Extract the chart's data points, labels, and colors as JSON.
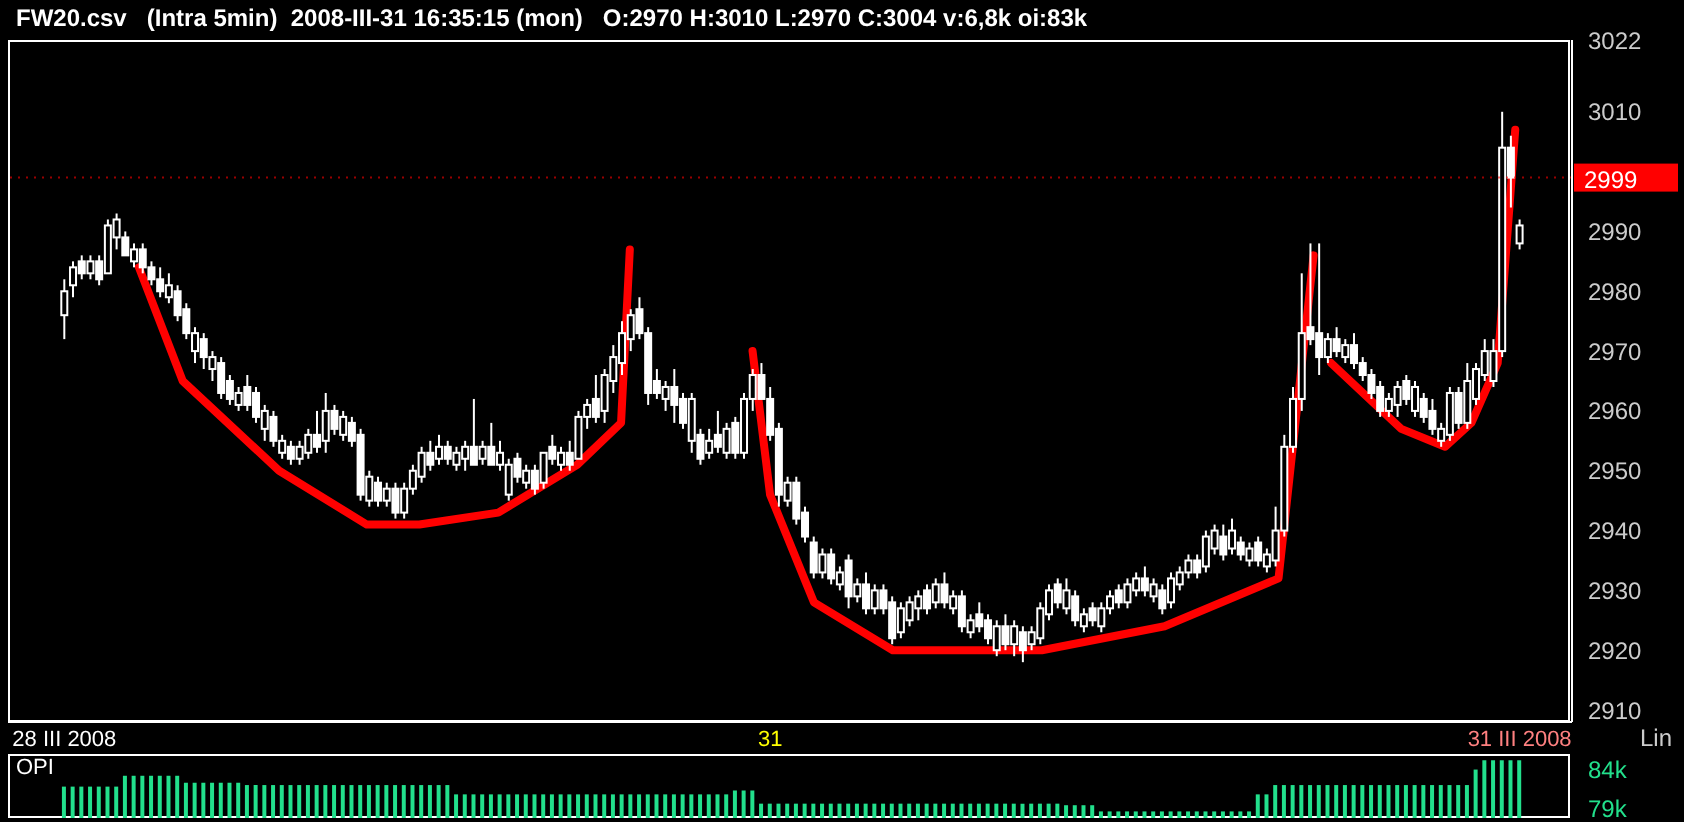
{
  "chart_data": [
    {
      "type": "candlestick",
      "title": "FW20.csv   (Intra 5min)  2008-III-31 16:35:15 (mon)   O:2970 H:3010 L:2970 C:3004 v:6,8k oi:83k",
      "color": "#ffffff",
      "categories": [
        "28 III 2008",
        null,
        null,
        null,
        null,
        null,
        null,
        null,
        null,
        null,
        null,
        null,
        null,
        null,
        null,
        null,
        null,
        null,
        null,
        null,
        null,
        null,
        null,
        null,
        null,
        null,
        null,
        null,
        null,
        null,
        null,
        null,
        null,
        null,
        null,
        null,
        null,
        null,
        null,
        null,
        null,
        null,
        null,
        null,
        null,
        null,
        null,
        null,
        null,
        null,
        null,
        null,
        null,
        null,
        null,
        null,
        null,
        null,
        null,
        null,
        null,
        null,
        null,
        null,
        null,
        null,
        null,
        null,
        null,
        null,
        null,
        null,
        null,
        null,
        null,
        null,
        null,
        null,
        null,
        null,
        null,
        "31",
        null,
        null,
        null,
        null,
        null,
        null,
        null,
        null,
        null,
        null,
        null,
        null,
        null,
        null,
        null,
        null,
        null,
        null,
        null,
        null,
        null,
        null,
        null,
        null,
        null,
        null,
        null,
        null,
        null,
        null,
        null,
        null,
        null,
        null,
        null,
        null,
        null,
        null,
        null,
        null,
        null,
        null,
        null,
        null,
        null,
        null,
        null,
        null,
        null,
        null,
        null,
        null,
        null,
        null,
        null,
        null,
        null,
        null,
        null,
        null,
        null,
        null,
        null,
        null,
        null,
        null,
        null,
        null,
        null,
        null,
        null,
        null,
        null,
        null,
        null,
        null,
        null,
        null,
        null,
        null,
        null,
        null,
        null,
        null,
        null,
        "31 III 2008"
      ],
      "ohlc": [
        [
          2976,
          2982,
          2972,
          2980
        ],
        [
          2981,
          2985,
          2979,
          2984
        ],
        [
          2985,
          2986,
          2982,
          2983
        ],
        [
          2983,
          2986,
          2982,
          2985
        ],
        [
          2985,
          2986,
          2981,
          2982
        ],
        [
          2983,
          2992,
          2983,
          2991
        ],
        [
          2989,
          2993,
          2987,
          2992
        ],
        [
          2989,
          2990,
          2986,
          2986
        ],
        [
          2985,
          2988,
          2984,
          2987
        ],
        [
          2987,
          2988,
          2983,
          2984
        ],
        [
          2984,
          2985,
          2981,
          2982
        ],
        [
          2982,
          2984,
          2979,
          2980
        ],
        [
          2979,
          2983,
          2978,
          2981
        ],
        [
          2980,
          2981,
          2975,
          2976
        ],
        [
          2977,
          2978,
          2972,
          2973
        ],
        [
          2970,
          2974,
          2968,
          2973
        ],
        [
          2972,
          2973,
          2967,
          2969
        ],
        [
          2967,
          2970,
          2965,
          2969
        ],
        [
          2968,
          2969,
          2962,
          2963
        ],
        [
          2965,
          2966,
          2961,
          2962
        ],
        [
          2961,
          2964,
          2960,
          2963
        ],
        [
          2964,
          2966,
          2960,
          2961
        ],
        [
          2963,
          2964,
          2958,
          2959
        ],
        [
          2957,
          2961,
          2955,
          2960
        ],
        [
          2959,
          2960,
          2954,
          2955
        ],
        [
          2953,
          2956,
          2952,
          2955
        ],
        [
          2954,
          2955,
          2951,
          2952
        ],
        [
          2952,
          2955,
          2951,
          2954
        ],
        [
          2953,
          2957,
          2952,
          2956
        ],
        [
          2956,
          2960,
          2953,
          2954
        ],
        [
          2955,
          2963,
          2953,
          2960
        ],
        [
          2960,
          2961,
          2956,
          2957
        ],
        [
          2956,
          2960,
          2955,
          2959
        ],
        [
          2958,
          2959,
          2954,
          2955
        ],
        [
          2956,
          2957,
          2945,
          2946
        ],
        [
          2945,
          2950,
          2944,
          2949
        ],
        [
          2948,
          2949,
          2944,
          2945
        ],
        [
          2945,
          2948,
          2944,
          2947
        ],
        [
          2947,
          2948,
          2942,
          2943
        ],
        [
          2943,
          2948,
          2942,
          2947
        ],
        [
          2947,
          2951,
          2946,
          2950
        ],
        [
          2949,
          2954,
          2948,
          2953
        ],
        [
          2953,
          2955,
          2950,
          2951
        ],
        [
          2952,
          2956,
          2951,
          2954
        ],
        [
          2954,
          2955,
          2951,
          2952
        ],
        [
          2951,
          2954,
          2950,
          2953
        ],
        [
          2952,
          2955,
          2950,
          2954
        ],
        [
          2954,
          2962,
          2951,
          2951
        ],
        [
          2952,
          2955,
          2951,
          2954
        ],
        [
          2954,
          2958,
          2951,
          2951
        ],
        [
          2951,
          2955,
          2950,
          2953
        ],
        [
          2946,
          2952,
          2945,
          2951
        ],
        [
          2952,
          2953,
          2948,
          2949
        ],
        [
          2948,
          2951,
          2947,
          2950
        ],
        [
          2950,
          2951,
          2946,
          2947
        ],
        [
          2948,
          2953,
          2947,
          2953
        ],
        [
          2954,
          2956,
          2951,
          2952
        ],
        [
          2951,
          2954,
          2950,
          2953
        ],
        [
          2953,
          2955,
          2950,
          2951
        ],
        [
          2952,
          2960,
          2952,
          2959
        ],
        [
          2959,
          2962,
          2957,
          2961
        ],
        [
          2962,
          2966,
          2958,
          2959
        ],
        [
          2960,
          2967,
          2958,
          2966
        ],
        [
          2965,
          2971,
          2963,
          2969
        ],
        [
          2968,
          2975,
          2966,
          2973
        ],
        [
          2972,
          2977,
          2970,
          2976
        ],
        [
          2977,
          2979,
          2972,
          2973
        ],
        [
          2973,
          2974,
          2961,
          2963
        ],
        [
          2965,
          2967,
          2962,
          2963
        ],
        [
          2962,
          2965,
          2960,
          2964
        ],
        [
          2964,
          2967,
          2958,
          2961
        ],
        [
          2962,
          2963,
          2957,
          2958
        ],
        [
          2955,
          2963,
          2953,
          2962
        ],
        [
          2956,
          2957,
          2951,
          2952
        ],
        [
          2953,
          2957,
          2952,
          2955
        ],
        [
          2956,
          2960,
          2953,
          2954
        ],
        [
          2953,
          2958,
          2952,
          2957
        ],
        [
          2958,
          2959,
          2952,
          2953
        ],
        [
          2953,
          2963,
          2952,
          2962
        ],
        [
          2962,
          2967,
          2960,
          2966
        ],
        [
          2966,
          2968,
          2962,
          2962
        ],
        [
          2962,
          2964,
          2955,
          2956
        ],
        [
          2957,
          2958,
          2944,
          2946
        ],
        [
          2945,
          2949,
          2944,
          2948
        ],
        [
          2948,
          2949,
          2941,
          2942
        ],
        [
          2943,
          2944,
          2938,
          2939
        ],
        [
          2938,
          2939,
          2932,
          2933
        ],
        [
          2933,
          2937,
          2932,
          2936
        ],
        [
          2936,
          2937,
          2931,
          2932
        ],
        [
          2931,
          2934,
          2930,
          2933
        ],
        [
          2935,
          2936,
          2927,
          2929
        ],
        [
          2929,
          2932,
          2928,
          2931
        ],
        [
          2931,
          2933,
          2926,
          2927
        ],
        [
          2927,
          2931,
          2926,
          2930
        ],
        [
          2930,
          2931,
          2926,
          2927
        ],
        [
          2928,
          2929,
          2921,
          2922
        ],
        [
          2923,
          2928,
          2922,
          2927
        ],
        [
          2925,
          2929,
          2924,
          2928
        ],
        [
          2927,
          2930,
          2925,
          2929
        ],
        [
          2930,
          2931,
          2926,
          2927
        ],
        [
          2928,
          2932,
          2927,
          2931
        ],
        [
          2931,
          2933,
          2927,
          2928
        ],
        [
          2927,
          2930,
          2926,
          2929
        ],
        [
          2929,
          2930,
          2923,
          2924
        ],
        [
          2923,
          2926,
          2922,
          2925
        ],
        [
          2926,
          2928,
          2923,
          2924
        ],
        [
          2925,
          2926,
          2921,
          2922
        ],
        [
          2920,
          2925,
          2919,
          2924
        ],
        [
          2924,
          2926,
          2920,
          2921
        ],
        [
          2921,
          2925,
          2919,
          2924
        ],
        [
          2923,
          2924,
          2918,
          2920
        ],
        [
          2921,
          2924,
          2920,
          2923
        ],
        [
          2922,
          2928,
          2921,
          2927
        ],
        [
          2926,
          2931,
          2925,
          2930
        ],
        [
          2931,
          2932,
          2927,
          2928
        ],
        [
          2927,
          2932,
          2926,
          2930
        ],
        [
          2929,
          2930,
          2924,
          2925
        ],
        [
          2924,
          2927,
          2923,
          2926
        ],
        [
          2927,
          2928,
          2924,
          2925
        ],
        [
          2924,
          2928,
          2923,
          2927
        ],
        [
          2927,
          2930,
          2926,
          2929
        ],
        [
          2930,
          2931,
          2927,
          2928
        ],
        [
          2928,
          2932,
          2927,
          2931
        ],
        [
          2930,
          2933,
          2929,
          2932
        ],
        [
          2932,
          2934,
          2929,
          2930
        ],
        [
          2929,
          2932,
          2928,
          2931
        ],
        [
          2930,
          2931,
          2926,
          2927
        ],
        [
          2928,
          2933,
          2927,
          2932
        ],
        [
          2931,
          2934,
          2930,
          2933
        ],
        [
          2933,
          2936,
          2932,
          2935
        ],
        [
          2935,
          2936,
          2932,
          2933
        ],
        [
          2934,
          2940,
          2933,
          2939
        ],
        [
          2937,
          2941,
          2936,
          2940
        ],
        [
          2939,
          2941,
          2935,
          2936
        ],
        [
          2937,
          2942,
          2936,
          2940
        ],
        [
          2938,
          2939,
          2935,
          2936
        ],
        [
          2935,
          2938,
          2934,
          2937
        ],
        [
          2938,
          2939,
          2934,
          2935
        ],
        [
          2934,
          2937,
          2933,
          2936
        ],
        [
          2935,
          2944,
          2934,
          2940
        ],
        [
          2940,
          2956,
          2939,
          2954
        ],
        [
          2954,
          2964,
          2953,
          2962
        ],
        [
          2962,
          2983,
          2960,
          2973
        ],
        [
          2974,
          2988,
          2971,
          2972
        ],
        [
          2973,
          2988,
          2966,
          2969
        ],
        [
          2969,
          2973,
          2968,
          2972
        ],
        [
          2972,
          2974,
          2969,
          2970
        ],
        [
          2969,
          2972,
          2968,
          2971
        ],
        [
          2971,
          2973,
          2967,
          2968
        ],
        [
          2968,
          2969,
          2965,
          2966
        ],
        [
          2966,
          2967,
          2962,
          2963
        ],
        [
          2964,
          2965,
          2959,
          2960
        ],
        [
          2960,
          2963,
          2959,
          2962
        ],
        [
          2961,
          2965,
          2959,
          2964
        ],
        [
          2965,
          2966,
          2961,
          2962
        ],
        [
          2960,
          2965,
          2959,
          2964
        ],
        [
          2962,
          2963,
          2958,
          2959
        ],
        [
          2960,
          2962,
          2956,
          2957
        ],
        [
          2955,
          2958,
          2954,
          2957
        ],
        [
          2956,
          2964,
          2955,
          2963
        ],
        [
          2963,
          2964,
          2957,
          2958
        ],
        [
          2958,
          2968,
          2957,
          2965
        ],
        [
          2962,
          2968,
          2961,
          2967
        ],
        [
          2966,
          2972,
          2965,
          2970
        ],
        [
          2965,
          2972,
          2964,
          2970
        ],
        [
          2970,
          3010,
          2969,
          3004
        ],
        [
          3004,
          3006,
          2994,
          2999
        ],
        [
          2988,
          2992,
          2987,
          2991
        ]
      ],
      "series": [
        {
          "type": "line",
          "color": "#ff0000",
          "values": [
            null,
            null,
            null,
            null,
            null,
            null,
            null,
            null,
            null,
            2984,
            null,
            null,
            null,
            null,
            2965,
            null,
            null,
            null,
            null,
            null,
            null,
            null,
            null,
            null,
            null,
            2950,
            null,
            null,
            null,
            null,
            null,
            null,
            null,
            null,
            null,
            2941,
            null,
            null,
            null,
            null,
            null,
            2941,
            null,
            null,
            null,
            null,
            null,
            null,
            null,
            null,
            2943,
            null,
            null,
            null,
            null,
            null,
            null,
            null,
            null,
            2951,
            null,
            null,
            null,
            null,
            2958,
            2987,
            null,
            null,
            null,
            null,
            null,
            null,
            null,
            null,
            null,
            null,
            null,
            null,
            null,
            null,
            null,
            null,
            null,
            null,
            null,
            null,
            null,
            null,
            null,
            null,
            null,
            null,
            null,
            null,
            null,
            null,
            null,
            null,
            null,
            null,
            null,
            null,
            null,
            null,
            null,
            null,
            null,
            null,
            null,
            null,
            null,
            null,
            null,
            null,
            null,
            null,
            null,
            null,
            null,
            null,
            null,
            null,
            null,
            null,
            null,
            null,
            null,
            null,
            null,
            null,
            null,
            null,
            null,
            null,
            null,
            null,
            null,
            null,
            null,
            null,
            null,
            null,
            null,
            null,
            null,
            null,
            null,
            null,
            null,
            null,
            null,
            null,
            null,
            null,
            null,
            null,
            null,
            null,
            null,
            null,
            null,
            null,
            null,
            null,
            null,
            null,
            null,
            null
          ]
        },
        {
          "type": "line",
          "color": "#ff0000",
          "values": [
            null,
            null,
            null,
            null,
            null,
            null,
            null,
            null,
            null,
            null,
            null,
            null,
            null,
            null,
            null,
            null,
            null,
            null,
            null,
            null,
            null,
            null,
            null,
            null,
            null,
            null,
            null,
            null,
            null,
            null,
            null,
            null,
            null,
            null,
            null,
            null,
            null,
            null,
            null,
            null,
            null,
            null,
            null,
            null,
            null,
            null,
            null,
            null,
            null,
            null,
            null,
            null,
            null,
            null,
            null,
            null,
            null,
            null,
            null,
            null,
            null,
            null,
            null,
            null,
            null,
            null,
            null,
            null,
            null,
            null,
            null,
            null,
            null,
            null,
            null,
            null,
            null,
            null,
            null,
            2970,
            null,
            2946,
            null,
            null,
            null,
            null,
            2928,
            null,
            null,
            null,
            null,
            null,
            null,
            null,
            null,
            2920,
            null,
            null,
            null,
            null,
            null,
            null,
            null,
            null,
            null,
            null,
            null,
            null,
            null,
            null,
            null,
            null,
            2920,
            null,
            null,
            null,
            null,
            null,
            null,
            null,
            null,
            null,
            null,
            null,
            null,
            null,
            2924,
            null,
            null,
            null,
            null,
            null,
            null,
            null,
            null,
            null,
            null,
            null,
            null,
            2932,
            null,
            null,
            null,
            2986,
            null,
            null,
            null,
            null,
            null,
            null,
            null,
            null,
            null,
            null,
            null,
            null,
            null,
            null,
            null,
            null,
            null,
            null,
            null,
            null,
            null,
            null,
            null,
            null
          ]
        },
        {
          "type": "line",
          "color": "#ff0000",
          "values": [
            null,
            null,
            null,
            null,
            null,
            null,
            null,
            null,
            null,
            null,
            null,
            null,
            null,
            null,
            null,
            null,
            null,
            null,
            null,
            null,
            null,
            null,
            null,
            null,
            null,
            null,
            null,
            null,
            null,
            null,
            null,
            null,
            null,
            null,
            null,
            null,
            null,
            null,
            null,
            null,
            null,
            null,
            null,
            null,
            null,
            null,
            null,
            null,
            null,
            null,
            null,
            null,
            null,
            null,
            null,
            null,
            null,
            null,
            null,
            null,
            null,
            null,
            null,
            null,
            null,
            null,
            null,
            null,
            null,
            null,
            null,
            null,
            null,
            null,
            null,
            null,
            null,
            null,
            null,
            null,
            null,
            null,
            null,
            null,
            null,
            null,
            null,
            null,
            null,
            null,
            null,
            null,
            null,
            null,
            null,
            null,
            null,
            null,
            null,
            null,
            null,
            null,
            null,
            null,
            null,
            null,
            null,
            null,
            null,
            null,
            null,
            null,
            null,
            null,
            null,
            null,
            null,
            null,
            null,
            null,
            null,
            null,
            null,
            null,
            null,
            null,
            null,
            null,
            null,
            null,
            null,
            null,
            null,
            null,
            null,
            null,
            null,
            null,
            null,
            null,
            null,
            null,
            null,
            null,
            null,
            2968,
            null,
            null,
            null,
            null,
            null,
            null,
            null,
            2957,
            null,
            null,
            null,
            null,
            2954,
            null,
            null,
            2958,
            null,
            null,
            2968,
            null,
            3007,
            null
          ]
        }
      ],
      "ylim": [
        2908,
        3022
      ],
      "yticks": [
        2910,
        2920,
        2930,
        2940,
        2950,
        2960,
        2970,
        2980,
        2990,
        3010,
        3022
      ],
      "ref_lines": [
        {
          "axis": "y",
          "value": 2999,
          "label": "2999",
          "color": "#ff0000",
          "line_style": "dotted"
        }
      ],
      "annotations": [
        "Lin"
      ]
    },
    {
      "type": "bar",
      "title": "OPI",
      "color": "#22e08c",
      "tick_labels": "y",
      "categories": [
        null,
        null,
        null,
        null,
        null,
        null,
        null,
        null,
        null,
        null,
        null,
        null,
        null,
        null,
        null,
        null,
        null,
        null,
        null,
        null,
        null,
        null,
        null,
        null,
        null,
        null,
        null,
        null,
        null,
        null,
        null,
        null,
        null,
        null,
        null,
        null,
        null,
        null,
        null,
        null,
        null,
        null,
        null,
        null,
        null,
        null,
        null,
        null,
        null,
        null,
        null,
        null,
        null,
        null,
        null,
        null,
        null,
        null,
        null,
        null,
        null,
        null,
        null,
        null,
        null,
        null,
        null,
        null,
        null,
        null,
        null,
        null,
        null,
        null,
        null,
        null,
        null,
        null,
        null,
        null,
        null,
        null,
        null,
        null,
        null,
        null,
        null,
        null,
        null,
        null,
        null,
        null,
        null,
        null,
        null,
        null,
        null,
        null,
        null,
        null,
        null,
        null,
        null,
        null,
        null,
        null,
        null,
        null,
        null,
        null,
        null,
        null,
        null,
        null,
        null,
        null,
        null,
        null,
        null,
        null,
        null,
        null,
        null,
        null,
        null,
        null,
        null,
        null,
        null,
        null,
        null,
        null,
        null,
        null,
        null,
        null,
        null,
        null,
        null,
        null,
        null,
        null,
        null,
        null,
        null,
        null,
        null,
        null,
        null,
        null,
        null,
        null,
        null,
        null,
        null,
        null,
        null,
        null,
        null,
        null,
        null,
        null,
        null,
        null,
        null,
        null,
        null,
        null
      ],
      "values": [
        81800,
        81800,
        81800,
        81800,
        81800,
        81800,
        81800,
        83200,
        83200,
        83200,
        83200,
        83200,
        83200,
        83200,
        82300,
        82300,
        82300,
        82300,
        82300,
        82300,
        82300,
        82000,
        82000,
        82000,
        82000,
        82000,
        82000,
        82000,
        82000,
        82000,
        82000,
        82000,
        82000,
        82000,
        82000,
        82000,
        82000,
        82000,
        82000,
        82000,
        82000,
        82000,
        82000,
        82000,
        82000,
        80800,
        80800,
        80800,
        80800,
        80800,
        80800,
        80800,
        80800,
        80800,
        80800,
        80800,
        80800,
        80800,
        80800,
        80800,
        80800,
        80800,
        80800,
        80800,
        80800,
        80800,
        80800,
        80800,
        80800,
        80800,
        80800,
        80800,
        80800,
        80800,
        80800,
        80800,
        80800,
        81300,
        81300,
        81300,
        79600,
        79600,
        79600,
        79600,
        79600,
        79600,
        79600,
        79600,
        79600,
        79600,
        79600,
        79600,
        79600,
        79600,
        79600,
        79600,
        79600,
        79600,
        79600,
        79600,
        79600,
        79600,
        79600,
        79600,
        79600,
        79600,
        79600,
        79600,
        79600,
        79600,
        79600,
        79600,
        79600,
        79600,
        79600,
        79400,
        79400,
        79400,
        79400,
        78600,
        78600,
        78600,
        78600,
        78600,
        78600,
        78600,
        78600,
        78600,
        78600,
        78600,
        78600,
        78600,
        78600,
        78600,
        78600,
        78600,
        78600,
        80800,
        80800,
        82000,
        82000,
        82000,
        82000,
        82000,
        82000,
        82000,
        82000,
        82000,
        82000,
        82000,
        82000,
        82000,
        82000,
        82000,
        82000,
        82000,
        82000,
        82000,
        82000,
        82000,
        82000,
        82000,
        84000,
        85200,
        85200,
        85200,
        85200,
        85200
      ],
      "ylim": [
        77750,
        85750
      ],
      "yticks": [
        {
          "value": 84000,
          "label": "84k"
        },
        {
          "value": 79000,
          "label": "79k"
        }
      ]
    }
  ]
}
